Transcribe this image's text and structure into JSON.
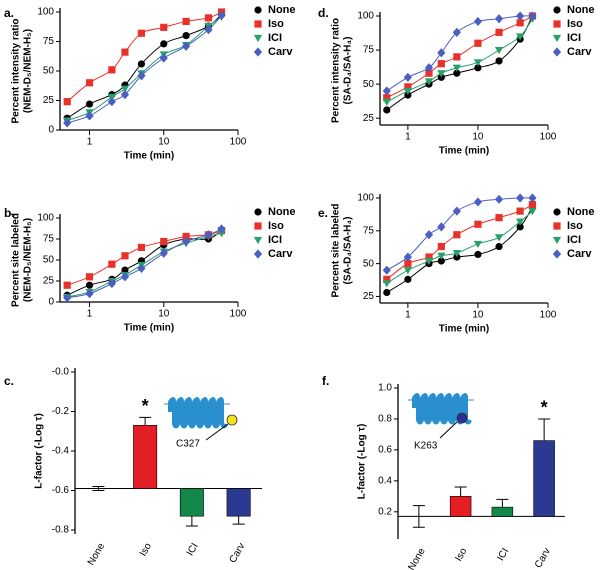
{
  "chart_data": [
    {
      "type": "line",
      "panel": "a.",
      "xlabel": "Time (min)",
      "ylabel": [
        "Percent intensity ratio",
        "(NEM-D₅/NEM-H₅)"
      ],
      "xscale": "log",
      "xlim": [
        0.4,
        100
      ],
      "xticks": [
        1,
        10,
        100
      ],
      "ylim": [
        0,
        100
      ],
      "yticks": [
        0,
        25,
        50,
        75,
        100
      ],
      "x": [
        0.5,
        1,
        2,
        3,
        5,
        10,
        20,
        40,
        60
      ],
      "series": [
        {
          "name": "None",
          "color": "#000000",
          "marker": "circle",
          "values": [
            10,
            22,
            30,
            38,
            56,
            73,
            80,
            88,
            98
          ]
        },
        {
          "name": "Iso",
          "color": "#e8312a",
          "marker": "square",
          "values": [
            24,
            40,
            51,
            66,
            82,
            87,
            92,
            95,
            100
          ]
        },
        {
          "name": "ICI",
          "color": "#27a06c",
          "marker": "triangle-down",
          "values": [
            8,
            15,
            28,
            35,
            48,
            64,
            72,
            88,
            96
          ]
        },
        {
          "name": "Carv",
          "color": "#4a5fc1",
          "marker": "diamond",
          "values": [
            6,
            12,
            24,
            30,
            46,
            61,
            71,
            85,
            97
          ]
        }
      ]
    },
    {
      "type": "line",
      "panel": "b.",
      "xlabel": "Time (min)",
      "ylabel": [
        "Percent site labeled",
        "(NEM-D₅/NEM-H₅)"
      ],
      "xscale": "log",
      "xlim": [
        0.4,
        100
      ],
      "xticks": [
        1,
        10,
        100
      ],
      "ylim": [
        0,
        100
      ],
      "yticks": [
        0,
        25,
        50,
        75,
        100
      ],
      "x": [
        0.5,
        1,
        2,
        3,
        5,
        10,
        20,
        40,
        60
      ],
      "series": [
        {
          "name": "None",
          "color": "#000000",
          "marker": "circle",
          "values": [
            8,
            20,
            27,
            38,
            49,
            68,
            75,
            75,
            85
          ]
        },
        {
          "name": "Iso",
          "color": "#e8312a",
          "marker": "square",
          "values": [
            20,
            30,
            45,
            55,
            65,
            72,
            78,
            80,
            85
          ]
        },
        {
          "name": "ICI",
          "color": "#27a06c",
          "marker": "triangle-down",
          "values": [
            6,
            12,
            25,
            32,
            44,
            60,
            70,
            78,
            82
          ]
        },
        {
          "name": "Carv",
          "color": "#4a5fc1",
          "marker": "diamond",
          "values": [
            5,
            10,
            22,
            30,
            40,
            58,
            72,
            80,
            87
          ]
        }
      ]
    },
    {
      "type": "bar",
      "panel": "c.",
      "ylabel": [
        "L-factor (-Log τ)"
      ],
      "ylim": [
        -0.8,
        0
      ],
      "yticks": [
        {
          "value": 0,
          "label": "-0.0"
        },
        -0.2,
        -0.4,
        -0.6,
        -0.8
      ],
      "categories": [
        "None",
        "Iso",
        "ICI",
        "Carv"
      ],
      "values": [
        -0.59,
        -0.27,
        -0.73,
        -0.73
      ],
      "errors": [
        0.01,
        0.04,
        0.05,
        0.04
      ],
      "colors": [
        "#000000",
        "#e41e25",
        "#13884a",
        "#2b3990"
      ],
      "annotations": [
        {
          "text": "*",
          "category": "Iso"
        }
      ],
      "site_label": "C327",
      "site_color": "#f2e41c"
    },
    {
      "type": "line",
      "panel": "d.",
      "xlabel": "Time (min)",
      "ylabel": [
        "Percent intensity ratio",
        "(SA-D₄/SA-H₄)"
      ],
      "xscale": "log",
      "xlim": [
        0.4,
        100
      ],
      "xticks": [
        1,
        10,
        100
      ],
      "ylim": [
        20,
        100
      ],
      "yticks": [
        25,
        50,
        75,
        100
      ],
      "x": [
        0.5,
        1,
        2,
        3,
        5,
        10,
        20,
        40,
        60
      ],
      "series": [
        {
          "name": "None",
          "color": "#000000",
          "marker": "circle",
          "values": [
            31,
            42,
            50,
            55,
            58,
            62,
            67,
            83,
            100
          ]
        },
        {
          "name": "Iso",
          "color": "#e8312a",
          "marker": "square",
          "values": [
            40,
            48,
            58,
            65,
            70,
            80,
            88,
            95,
            100
          ]
        },
        {
          "name": "ICI",
          "color": "#27a06c",
          "marker": "triangle-down",
          "values": [
            37,
            45,
            52,
            58,
            62,
            66,
            75,
            85,
            98
          ]
        },
        {
          "name": "Carv",
          "color": "#4a5fc1",
          "marker": "diamond",
          "values": [
            45,
            55,
            62,
            73,
            88,
            96,
            98,
            100,
            100
          ]
        }
      ]
    },
    {
      "type": "line",
      "panel": "e.",
      "xlabel": "Time (min)",
      "ylabel": [
        "Percent site labeled",
        "(SA-D₄/SA-H₄)"
      ],
      "xscale": "log",
      "xlim": [
        0.4,
        100
      ],
      "xticks": [
        1,
        10,
        100
      ],
      "ylim": [
        20,
        100
      ],
      "yticks": [
        25,
        50,
        75,
        100
      ],
      "x": [
        0.5,
        1,
        2,
        3,
        5,
        10,
        20,
        40,
        60
      ],
      "series": [
        {
          "name": "None",
          "color": "#000000",
          "marker": "circle",
          "values": [
            28,
            38,
            50,
            52,
            55,
            57,
            63,
            78,
            93
          ]
        },
        {
          "name": "Iso",
          "color": "#e8312a",
          "marker": "square",
          "values": [
            38,
            50,
            55,
            63,
            72,
            80,
            85,
            90,
            95
          ]
        },
        {
          "name": "ICI",
          "color": "#27a06c",
          "marker": "triangle-down",
          "values": [
            35,
            45,
            52,
            56,
            58,
            65,
            70,
            82,
            90
          ]
        },
        {
          "name": "Carv",
          "color": "#4a5fc1",
          "marker": "diamond",
          "values": [
            45,
            55,
            72,
            78,
            90,
            97,
            99,
            100,
            100
          ]
        }
      ]
    },
    {
      "type": "bar",
      "panel": "f.",
      "ylabel": [
        "L-factor (-Log τ)"
      ],
      "ylim": [
        0.05,
        1.0
      ],
      "yticks": [
        0.2,
        0.4,
        0.6,
        0.8,
        {
          "value": 1.0,
          "label": "1.0"
        }
      ],
      "categories": [
        "None",
        "Iso",
        "ICI",
        "Carv"
      ],
      "values": [
        0.17,
        0.3,
        0.23,
        0.66
      ],
      "errors": [
        0.07,
        0.06,
        0.05,
        0.14
      ],
      "colors": [
        "#000000",
        "#e41e25",
        "#13884a",
        "#2b3990"
      ],
      "annotations": [
        {
          "text": "*",
          "category": "Carv"
        }
      ],
      "site_label": "K263",
      "site_color": "#2b2f8f"
    }
  ]
}
